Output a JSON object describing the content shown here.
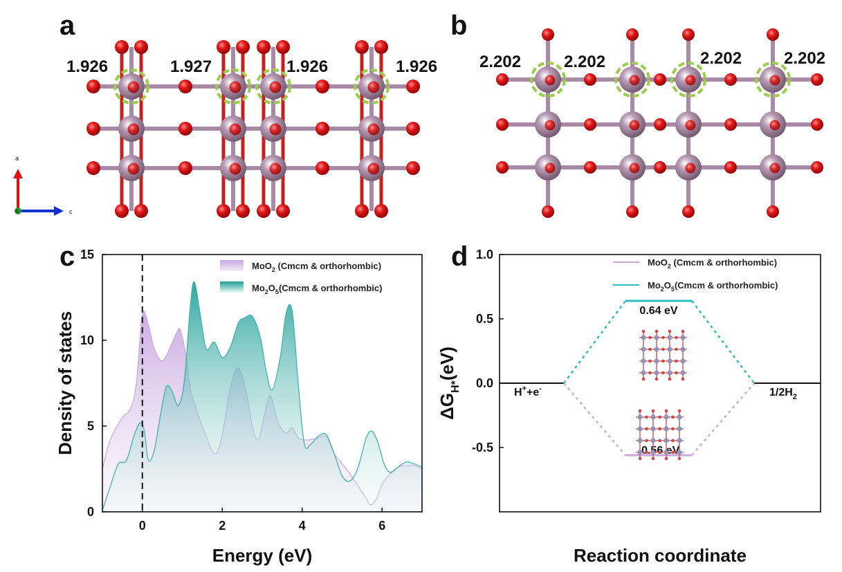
{
  "panel_a": {
    "letter": "a",
    "bond_labels": [
      "1.926",
      "1.927",
      "1.926",
      "1.926"
    ],
    "axis_labels": {
      "vertical": "a",
      "horizontal": "c",
      "origin": "b"
    }
  },
  "panel_b": {
    "letter": "b",
    "bond_labels": [
      "2.202",
      "2.202",
      "2.202",
      "2.202"
    ]
  },
  "colors": {
    "mo_atom": "#9c7f98",
    "o_atom": "#d40a0a",
    "highlight_circle": "#9acd4a",
    "moo2": "#c7a9dd",
    "mo2o5": "#2aa8a0",
    "axis_a": "#d11",
    "axis_c": "#1030d0",
    "axis_b": "#1f9a2c"
  },
  "panel_c": {
    "letter": "c",
    "legend": [
      {
        "sym": "MoO",
        "sub1": "2",
        "mid": "",
        "sub2": "",
        "tail": " (Cmcm & orthorhombic)"
      },
      {
        "sym": "Mo",
        "sub1": "2",
        "mid": "O",
        "sub2": "5",
        "tail": "(Cmcm & orthorhombic)"
      }
    ]
  },
  "panel_d": {
    "letter": "d",
    "legend": [
      {
        "sym": "MoO",
        "sub1": "2",
        "mid": "",
        "sub2": "",
        "tail": " (Cmcm & orthorhombic)"
      },
      {
        "sym": "Mo",
        "sub1": "2",
        "mid": "O",
        "sub2": "5",
        "tail": "(Cmcm & orthorhombic)"
      }
    ],
    "labels": {
      "left_state_parts": [
        "H",
        "+",
        "+e",
        "-"
      ],
      "right_state_parts": [
        "1/2H",
        "2"
      ],
      "ylabel_parts": [
        "ΔG",
        "H*",
        "(eV)"
      ]
    }
  },
  "chart_data": [
    {
      "type": "area",
      "title": "",
      "xlabel": "Energy (eV)",
      "ylabel": "Density of states",
      "xlim": [
        -1,
        7
      ],
      "ylim": [
        0,
        15
      ],
      "xticks": [
        "0",
        "2",
        "4",
        "6"
      ],
      "yticks": [
        "0",
        "5",
        "10",
        "15"
      ],
      "fermi_level_line_x": 0,
      "series": [
        {
          "name": "MoO2 (Cmcm & orthorhombic)",
          "x": [
            -1.0,
            -0.8,
            -0.5,
            -0.3,
            -0.15,
            0.0,
            0.15,
            0.3,
            0.5,
            0.7,
            0.85,
            0.95,
            1.1,
            1.2,
            1.35,
            1.5,
            1.7,
            1.85,
            2.0,
            2.2,
            2.4,
            2.6,
            2.75,
            2.9,
            3.05,
            3.2,
            3.4,
            3.6,
            3.75,
            3.9,
            4.05,
            4.2,
            4.4,
            4.6,
            4.8,
            5.0,
            5.2,
            5.4,
            5.6,
            5.7,
            5.85,
            6.0,
            6.2,
            6.4,
            6.6,
            6.8,
            7.0
          ],
          "y": [
            2.5,
            4.2,
            5.5,
            6.0,
            7.5,
            11.5,
            10.9,
            9.5,
            8.8,
            9.6,
            10.4,
            10.6,
            9.0,
            7.2,
            6.0,
            5.0,
            3.8,
            3.4,
            4.5,
            7.2,
            8.4,
            7.0,
            5.0,
            4.2,
            5.6,
            6.8,
            5.2,
            4.6,
            4.9,
            4.3,
            4.2,
            4.2,
            4.3,
            4.4,
            3.4,
            2.8,
            2.2,
            1.5,
            0.8,
            0.4,
            0.7,
            1.6,
            2.2,
            2.6,
            2.7,
            2.7,
            2.5
          ]
        },
        {
          "name": "Mo2O5(Cmcm & orthorhombic)",
          "x": [
            -1.0,
            -0.8,
            -0.6,
            -0.4,
            -0.2,
            -0.05,
            0.05,
            0.15,
            0.3,
            0.45,
            0.6,
            0.75,
            0.9,
            1.05,
            1.2,
            1.3,
            1.45,
            1.6,
            1.8,
            2.0,
            2.2,
            2.4,
            2.55,
            2.75,
            2.95,
            3.1,
            3.25,
            3.45,
            3.6,
            3.75,
            3.9,
            4.05,
            4.2,
            4.4,
            4.6,
            4.8,
            5.0,
            5.2,
            5.4,
            5.6,
            5.75,
            5.9,
            6.05,
            6.2,
            6.4,
            6.6,
            6.8,
            7.0
          ],
          "y": [
            0.1,
            1.5,
            2.8,
            3.0,
            4.5,
            5.2,
            4.7,
            3.0,
            3.6,
            5.6,
            7.3,
            7.0,
            6.2,
            7.6,
            12.0,
            13.4,
            11.5,
            9.5,
            9.9,
            9.0,
            9.6,
            11.0,
            11.3,
            11.4,
            10.2,
            8.2,
            7.1,
            9.0,
            11.6,
            11.7,
            7.5,
            4.0,
            3.9,
            4.4,
            4.5,
            3.4,
            2.1,
            1.8,
            2.6,
            4.3,
            4.7,
            4.0,
            2.8,
            2.3,
            2.6,
            2.9,
            2.8,
            2.6
          ]
        }
      ]
    },
    {
      "type": "line",
      "title": "",
      "xlabel": "Reaction coordinate",
      "ylabel": "ΔGH*(eV)",
      "ylim": [
        -1.0,
        1.0
      ],
      "yticks": [
        "-0.5",
        "0.0",
        "0.5",
        "1.0"
      ],
      "states": [
        "H++e-",
        "1/2H2"
      ],
      "series": [
        {
          "name": "MoO2 (Cmcm & orthorhombic)",
          "values": [
            0.0,
            -0.56,
            0.0
          ],
          "label": "-0.56 eV"
        },
        {
          "name": "Mo2O5(Cmcm & orthorhombic)",
          "values": [
            0.0,
            0.64,
            0.0
          ],
          "label": "0.64 eV"
        }
      ]
    }
  ]
}
